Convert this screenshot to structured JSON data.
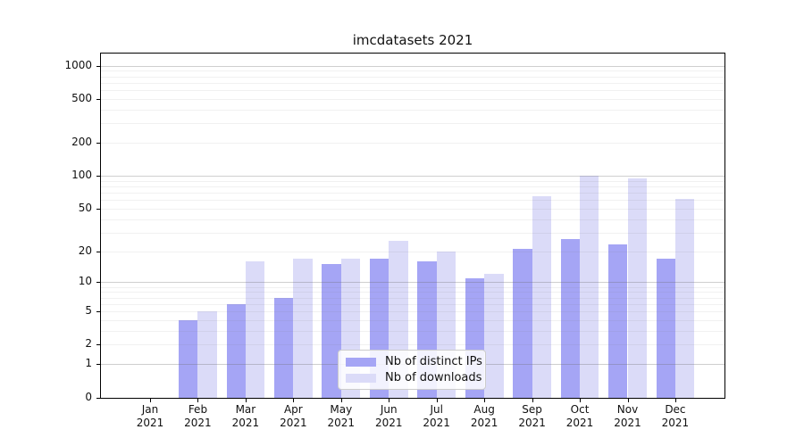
{
  "title": "imcdatasets 2021",
  "chart_data": {
    "type": "bar",
    "title": "imcdatasets 2021",
    "categories": [
      "Jan",
      "Feb",
      "Mar",
      "Apr",
      "May",
      "Jun",
      "Jul",
      "Aug",
      "Sep",
      "Oct",
      "Nov",
      "Dec"
    ],
    "category_year": "2021",
    "series": [
      {
        "name": "Nb of distinct IPs",
        "color": "#a5a5f5",
        "values": [
          0,
          4,
          6,
          7,
          15,
          17,
          16,
          11,
          21,
          26,
          23,
          17
        ]
      },
      {
        "name": "Nb of downloads",
        "color": "#dbdbf8",
        "values": [
          0,
          5,
          16,
          17,
          17,
          25,
          20,
          12,
          65,
          100,
          95,
          61
        ]
      }
    ],
    "xlabel": "",
    "ylabel": "",
    "y_scale": "log1p",
    "ylim": [
      0,
      1300
    ],
    "y_ticks": [
      0,
      1,
      2,
      5,
      10,
      20,
      50,
      100,
      200,
      500,
      1000
    ],
    "y_major_gridlines": [
      1,
      10,
      100,
      1000
    ],
    "y_minor_gridlines": [
      2,
      3,
      4,
      5,
      6,
      7,
      8,
      9,
      20,
      30,
      40,
      50,
      60,
      70,
      80,
      90,
      200,
      300,
      400,
      500,
      600,
      700,
      800,
      900
    ],
    "grid": true,
    "legend_position": "lower center"
  },
  "legend": {
    "items": [
      {
        "label": "Nb of distinct IPs",
        "color": "#a5a5f5"
      },
      {
        "label": "Nb of downloads",
        "color": "#dbdbf8"
      }
    ]
  },
  "colors": {
    "ips_bar": "#a5a5f5",
    "downloads_bar": "#dbdbf8",
    "major_grid": "rgba(105,105,105,0.32)",
    "minor_grid": "rgba(115,115,115,0.10)",
    "axis": "#000000",
    "text": "#111111",
    "background": "#ffffff"
  }
}
